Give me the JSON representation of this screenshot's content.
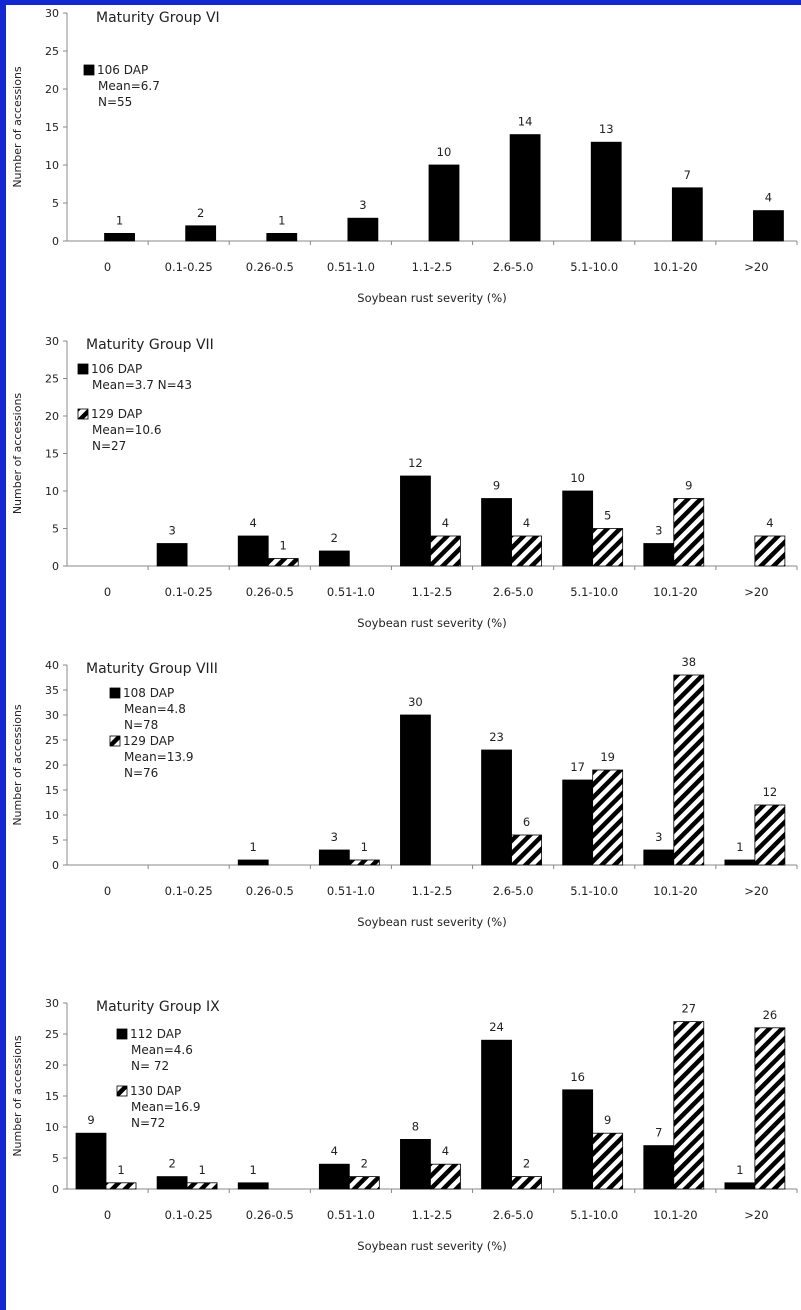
{
  "colors": {
    "frame": "#1428d2",
    "solid_bar": "#000000",
    "hatch_bar": "#000000",
    "axis": "#888888"
  },
  "chart_data": [
    {
      "type": "bar",
      "title": "Maturity Group VI",
      "xlabel": "Soybean rust severity (%)",
      "ylabel": "Number of accessions",
      "ylim": [
        0,
        30
      ],
      "yticks": [
        0,
        5,
        10,
        15,
        20,
        25,
        30
      ],
      "categories": [
        "0",
        "0.1-0.25",
        "0.26-0.5",
        "0.51-1.0",
        "1.1-2.5",
        "2.6-5.0",
        "5.1-10.0",
        "10.1-20",
        ">20"
      ],
      "series": [
        {
          "name": "106 DAP",
          "pattern": "solid",
          "legend_lines": [
            "106 DAP",
            "Mean=6.7",
            "N=55"
          ],
          "values": [
            1,
            2,
            1,
            3,
            10,
            14,
            13,
            7,
            4
          ]
        }
      ]
    },
    {
      "type": "bar",
      "title": "Maturity Group VII",
      "xlabel": "Soybean rust severity (%)",
      "ylabel": "Number of accessions",
      "ylim": [
        0,
        30
      ],
      "yticks": [
        0,
        5,
        10,
        15,
        20,
        25,
        30
      ],
      "categories": [
        "0",
        "0.1-0.25",
        "0.26-0.5",
        "0.51-1.0",
        "1.1-2.5",
        "2.6-5.0",
        "5.1-10.0",
        "10.1-20",
        ">20"
      ],
      "series": [
        {
          "name": "106 DAP",
          "pattern": "solid",
          "legend_lines": [
            "106 DAP",
            "Mean=3.7 N=43"
          ],
          "values": [
            null,
            3,
            4,
            2,
            12,
            9,
            10,
            3,
            null
          ]
        },
        {
          "name": "129 DAP",
          "pattern": "hatch",
          "legend_lines": [
            "129 DAP",
            "Mean=10.6",
            "N=27"
          ],
          "values": [
            null,
            null,
            1,
            null,
            4,
            4,
            5,
            9,
            4
          ]
        }
      ]
    },
    {
      "type": "bar",
      "title": "Maturity Group VIII",
      "xlabel": "Soybean rust severity (%)",
      "ylabel": "Number of accessions",
      "ylim": [
        0,
        40
      ],
      "yticks": [
        0,
        5,
        10,
        15,
        20,
        25,
        30,
        35,
        40
      ],
      "categories": [
        "0",
        "0.1-0.25",
        "0.26-0.5",
        "0.51-1.0",
        "1.1-2.5",
        "2.6-5.0",
        "5.1-10.0",
        "10.1-20",
        ">20"
      ],
      "series": [
        {
          "name": "108 DAP",
          "pattern": "solid",
          "legend_lines": [
            "108 DAP",
            "Mean=4.8",
            "N=78"
          ],
          "values": [
            null,
            null,
            1,
            3,
            30,
            23,
            17,
            3,
            1
          ]
        },
        {
          "name": "129 DAP",
          "pattern": "hatch",
          "legend_lines": [
            "129 DAP",
            "Mean=13.9",
            "N=76"
          ],
          "values": [
            null,
            null,
            null,
            1,
            null,
            6,
            19,
            38,
            12
          ]
        }
      ]
    },
    {
      "type": "bar",
      "title": "Maturity Group IX",
      "xlabel": "Soybean rust severity (%)",
      "ylabel": "Number of accessions",
      "ylim": [
        0,
        30
      ],
      "yticks": [
        0,
        5,
        10,
        15,
        20,
        25,
        30
      ],
      "categories": [
        "0",
        "0.1-0.25",
        "0.26-0.5",
        "0.51-1.0",
        "1.1-2.5",
        "2.6-5.0",
        "5.1-10.0",
        "10.1-20",
        ">20"
      ],
      "series": [
        {
          "name": "112 DAP",
          "pattern": "solid",
          "legend_lines": [
            "112 DAP",
            "Mean=4.6",
            "N= 72"
          ],
          "values": [
            9,
            2,
            1,
            4,
            8,
            24,
            16,
            7,
            1
          ]
        },
        {
          "name": "130 DAP",
          "pattern": "hatch",
          "legend_lines": [
            "130 DAP",
            "Mean=16.9",
            "N=72"
          ],
          "values": [
            1,
            1,
            null,
            2,
            4,
            2,
            9,
            27,
            26
          ]
        }
      ]
    }
  ]
}
